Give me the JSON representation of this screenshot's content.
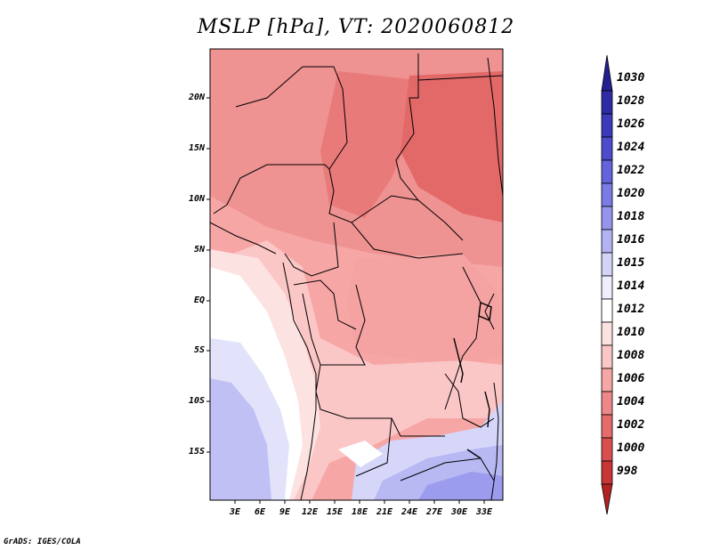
{
  "title": "MSLP [hPa], VT: 2020060812",
  "map": {
    "y_axis_labels": [
      "20N",
      "15N",
      "10N",
      "5N",
      "EQ",
      "5S",
      "10S",
      "15S"
    ],
    "x_axis_labels": [
      "3E",
      "6E",
      "9E",
      "12E",
      "15E",
      "18E",
      "21E",
      "24E",
      "27E",
      "30E",
      "33E"
    ]
  },
  "colorbar": {
    "labels": [
      "1030",
      "1028",
      "1026",
      "1024",
      "1022",
      "1020",
      "1018",
      "1016",
      "1015",
      "1014",
      "1012",
      "1010",
      "1008",
      "1006",
      "1004",
      "1002",
      "1000",
      "998"
    ],
    "colors": [
      "#24208f",
      "#2e2ba6",
      "#3b3bbb",
      "#4d4ccc",
      "#6363db",
      "#7b7be6",
      "#9595ee",
      "#b3b3f4",
      "#d4d4f9",
      "#eeeefd",
      "#ffffff",
      "#fde2e2",
      "#fbc6c6",
      "#f7a6a6",
      "#ee8888",
      "#e46c6c",
      "#d94f4f",
      "#c73535",
      "#b42222"
    ]
  },
  "credit": "GrADS: IGES/COLA"
}
